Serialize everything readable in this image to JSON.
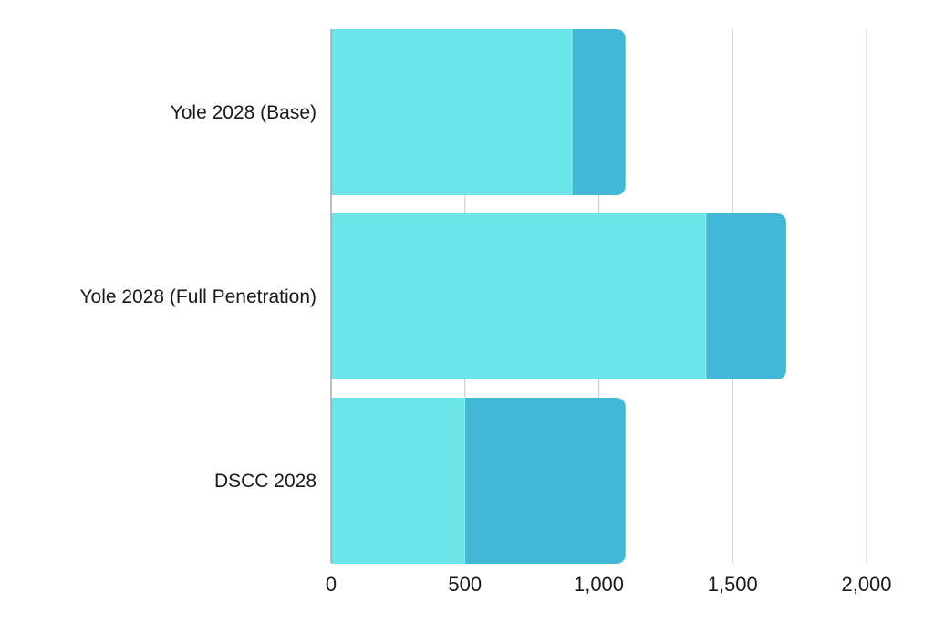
{
  "chart_data": {
    "type": "bar",
    "orientation": "horizontal",
    "stacked": true,
    "categories": [
      "Yole 2028 (Base)",
      "Yole 2028 (Full Penetration)",
      "DSCC 2028"
    ],
    "series": [
      {
        "color": "#6ce5e8",
        "values": [
          900,
          1400,
          500
        ]
      },
      {
        "color": "#43b8d6",
        "values": [
          200,
          300,
          600
        ]
      }
    ],
    "xticks": [
      {
        "value": 0,
        "label": "0"
      },
      {
        "value": 500,
        "label": "500"
      },
      {
        "value": 1000,
        "label": "1,000"
      },
      {
        "value": 1500,
        "label": "1,500"
      },
      {
        "value": 2000,
        "label": "2,000"
      }
    ],
    "xlim": [
      0,
      2000
    ],
    "grid": true,
    "legend": "none"
  }
}
